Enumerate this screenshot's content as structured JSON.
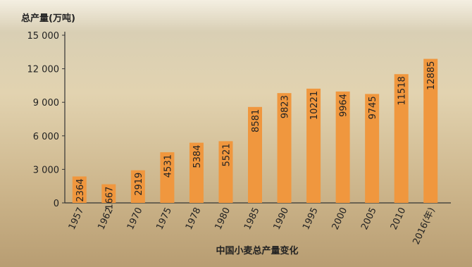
{
  "chart_data": {
    "type": "bar",
    "title": "中国小麦总产量变化",
    "y_label": "总产量(万吨)",
    "categories": [
      "1957",
      "1962",
      "1970",
      "1975",
      "1978",
      "1980",
      "1985",
      "1990",
      "1995",
      "2000",
      "2005",
      "2010",
      "2016(年)"
    ],
    "values": [
      2364,
      1667,
      2919,
      4531,
      5384,
      5521,
      8581,
      9823,
      10221,
      9964,
      9745,
      11518,
      12885
    ],
    "color": "#f0973e",
    "ylim": [
      0,
      15000
    ],
    "yticks": [
      0,
      {
        "value": 3000,
        "label": "3 000"
      },
      {
        "value": 6000,
        "label": "6 000"
      },
      {
        "value": 9000,
        "label": "9 000"
      },
      {
        "value": 12000,
        "label": "12 000"
      },
      {
        "value": 15000,
        "label": "15 000"
      }
    ]
  }
}
